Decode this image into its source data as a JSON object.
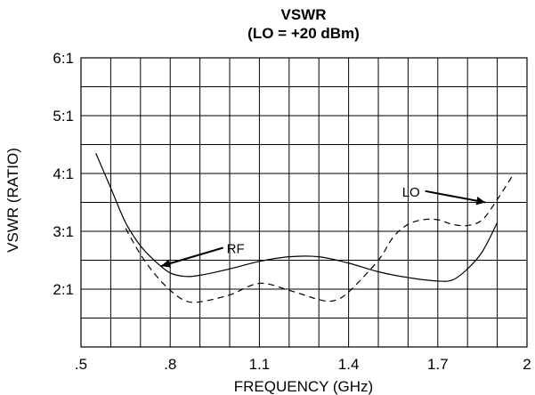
{
  "chart_data": {
    "type": "line",
    "title": "VSWR",
    "subtitle": "(LO = +20 dBm)",
    "xlabel": "FREQUENCY (GHz)",
    "ylabel": "VSWR (RATIO)",
    "xlim": [
      0.5,
      2.0
    ],
    "ylim": [
      1.0,
      6.0
    ],
    "x_ticks": [
      0.5,
      0.8,
      1.1,
      1.4,
      1.7,
      2.0
    ],
    "x_tick_labels": [
      ".5",
      ".8",
      "1.1",
      "1.4",
      "1.7",
      "2"
    ],
    "y_ticks": [
      2,
      3,
      4,
      5,
      6
    ],
    "y_tick_labels": [
      "2:1",
      "3:1",
      "4:1",
      "5:1",
      "6:1"
    ],
    "grid": true,
    "series": [
      {
        "name": "RF",
        "style": "solid",
        "x": [
          0.55,
          0.6,
          0.65,
          0.7,
          0.75,
          0.8,
          0.85,
          0.9,
          1.0,
          1.1,
          1.2,
          1.3,
          1.4,
          1.5,
          1.6,
          1.7,
          1.75,
          1.8,
          1.85,
          1.9
        ],
        "y": [
          4.35,
          3.75,
          3.15,
          2.75,
          2.48,
          2.28,
          2.22,
          2.24,
          2.35,
          2.48,
          2.56,
          2.56,
          2.45,
          2.3,
          2.2,
          2.14,
          2.16,
          2.35,
          2.65,
          3.15
        ]
      },
      {
        "name": "LO",
        "style": "dashed",
        "x": [
          0.65,
          0.7,
          0.75,
          0.8,
          0.85,
          0.9,
          1.0,
          1.1,
          1.2,
          1.3,
          1.35,
          1.4,
          1.5,
          1.55,
          1.6,
          1.65,
          1.7,
          1.75,
          1.8,
          1.85,
          1.9,
          1.95
        ],
        "y": [
          3.05,
          2.6,
          2.25,
          1.98,
          1.8,
          1.78,
          1.9,
          2.1,
          1.98,
          1.82,
          1.8,
          1.95,
          2.5,
          2.9,
          3.12,
          3.2,
          3.2,
          3.12,
          3.1,
          3.2,
          3.55,
          3.95
        ]
      }
    ],
    "annotations": [
      {
        "text": "RF",
        "x": 0.99,
        "y": 2.7,
        "arrow_to": [
          0.77,
          2.4
        ]
      },
      {
        "text": "LO",
        "x": 1.58,
        "y": 3.68,
        "arrow_to": [
          1.86,
          3.5
        ]
      }
    ]
  }
}
